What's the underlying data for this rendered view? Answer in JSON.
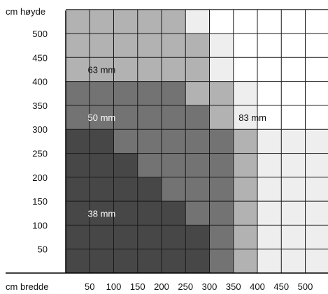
{
  "chart_data": {
    "type": "heatmap",
    "x_axis_title": "cm bredde",
    "y_axis_title": "cm høyde",
    "x_ticks": [
      50,
      100,
      150,
      200,
      250,
      300,
      350,
      400,
      450,
      500
    ],
    "y_ticks": [
      50,
      100,
      150,
      200,
      250,
      300,
      350,
      400,
      450,
      500
    ],
    "x_cells": [
      25,
      75,
      125,
      175,
      225,
      275,
      325,
      375,
      425,
      475,
      525
    ],
    "y_cells": [
      525,
      475,
      425,
      375,
      325,
      275,
      225,
      175,
      125,
      75,
      25
    ],
    "xlim": [
      0,
      550
    ],
    "ylim": [
      0,
      550
    ],
    "categories": [
      "38 mm",
      "50 mm",
      "63 mm",
      "83 mm",
      ""
    ],
    "category_colors": [
      "#474747",
      "#737373",
      "#b2b2b2",
      "#eeeeee",
      "#ffffff"
    ],
    "grid_rows": [
      [
        2,
        2,
        2,
        2,
        2,
        3,
        4,
        4,
        4,
        4,
        4
      ],
      [
        2,
        2,
        2,
        2,
        2,
        2,
        3,
        4,
        4,
        4,
        4
      ],
      [
        2,
        2,
        2,
        2,
        2,
        2,
        3,
        4,
        4,
        4,
        4
      ],
      [
        1,
        1,
        1,
        1,
        1,
        2,
        2,
        3,
        4,
        4,
        4
      ],
      [
        1,
        1,
        1,
        1,
        1,
        1,
        2,
        3,
        4,
        4,
        4
      ],
      [
        0,
        0,
        1,
        1,
        1,
        1,
        1,
        2,
        3,
        3,
        3
      ],
      [
        0,
        0,
        0,
        1,
        1,
        1,
        1,
        2,
        3,
        3,
        3
      ],
      [
        0,
        0,
        0,
        0,
        1,
        1,
        1,
        2,
        3,
        3,
        3
      ],
      [
        0,
        0,
        0,
        0,
        0,
        1,
        1,
        2,
        3,
        3,
        3
      ],
      [
        0,
        0,
        0,
        0,
        0,
        0,
        1,
        2,
        3,
        3,
        3
      ],
      [
        0,
        0,
        0,
        0,
        0,
        0,
        1,
        2,
        3,
        3,
        3
      ]
    ],
    "region_labels": [
      {
        "text": "63 mm",
        "x": 75,
        "y": 425,
        "color": "#111111"
      },
      {
        "text": "50 mm",
        "x": 75,
        "y": 325,
        "color": "#ffffff"
      },
      {
        "text": "83 mm",
        "x": 390,
        "y": 325,
        "color": "#111111"
      },
      {
        "text": "38 mm",
        "x": 75,
        "y": 125,
        "color": "#ffffff"
      }
    ],
    "grid": true,
    "legend": "none"
  }
}
